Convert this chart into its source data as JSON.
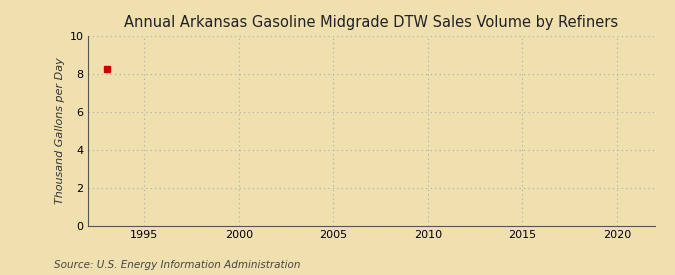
{
  "title": "Annual Arkansas Gasoline Midgrade DTW Sales Volume by Refiners",
  "ylabel": "Thousand Gallons per Day",
  "source": "Source: U.S. Energy Information Administration",
  "background_color": "#f0e0b0",
  "plot_background_color": "#f0e0b0",
  "data_x": [
    1993
  ],
  "data_y": [
    8.25
  ],
  "data_color": "#cc0000",
  "data_marker_size": 4,
  "xlim": [
    1992,
    2022
  ],
  "ylim": [
    0,
    10
  ],
  "xticks": [
    1995,
    2000,
    2005,
    2010,
    2015,
    2020
  ],
  "yticks": [
    0,
    2,
    4,
    6,
    8,
    10
  ],
  "grid_color": "#aaaaaa",
  "title_fontsize": 10.5,
  "label_fontsize": 8,
  "tick_fontsize": 8,
  "source_fontsize": 7.5
}
